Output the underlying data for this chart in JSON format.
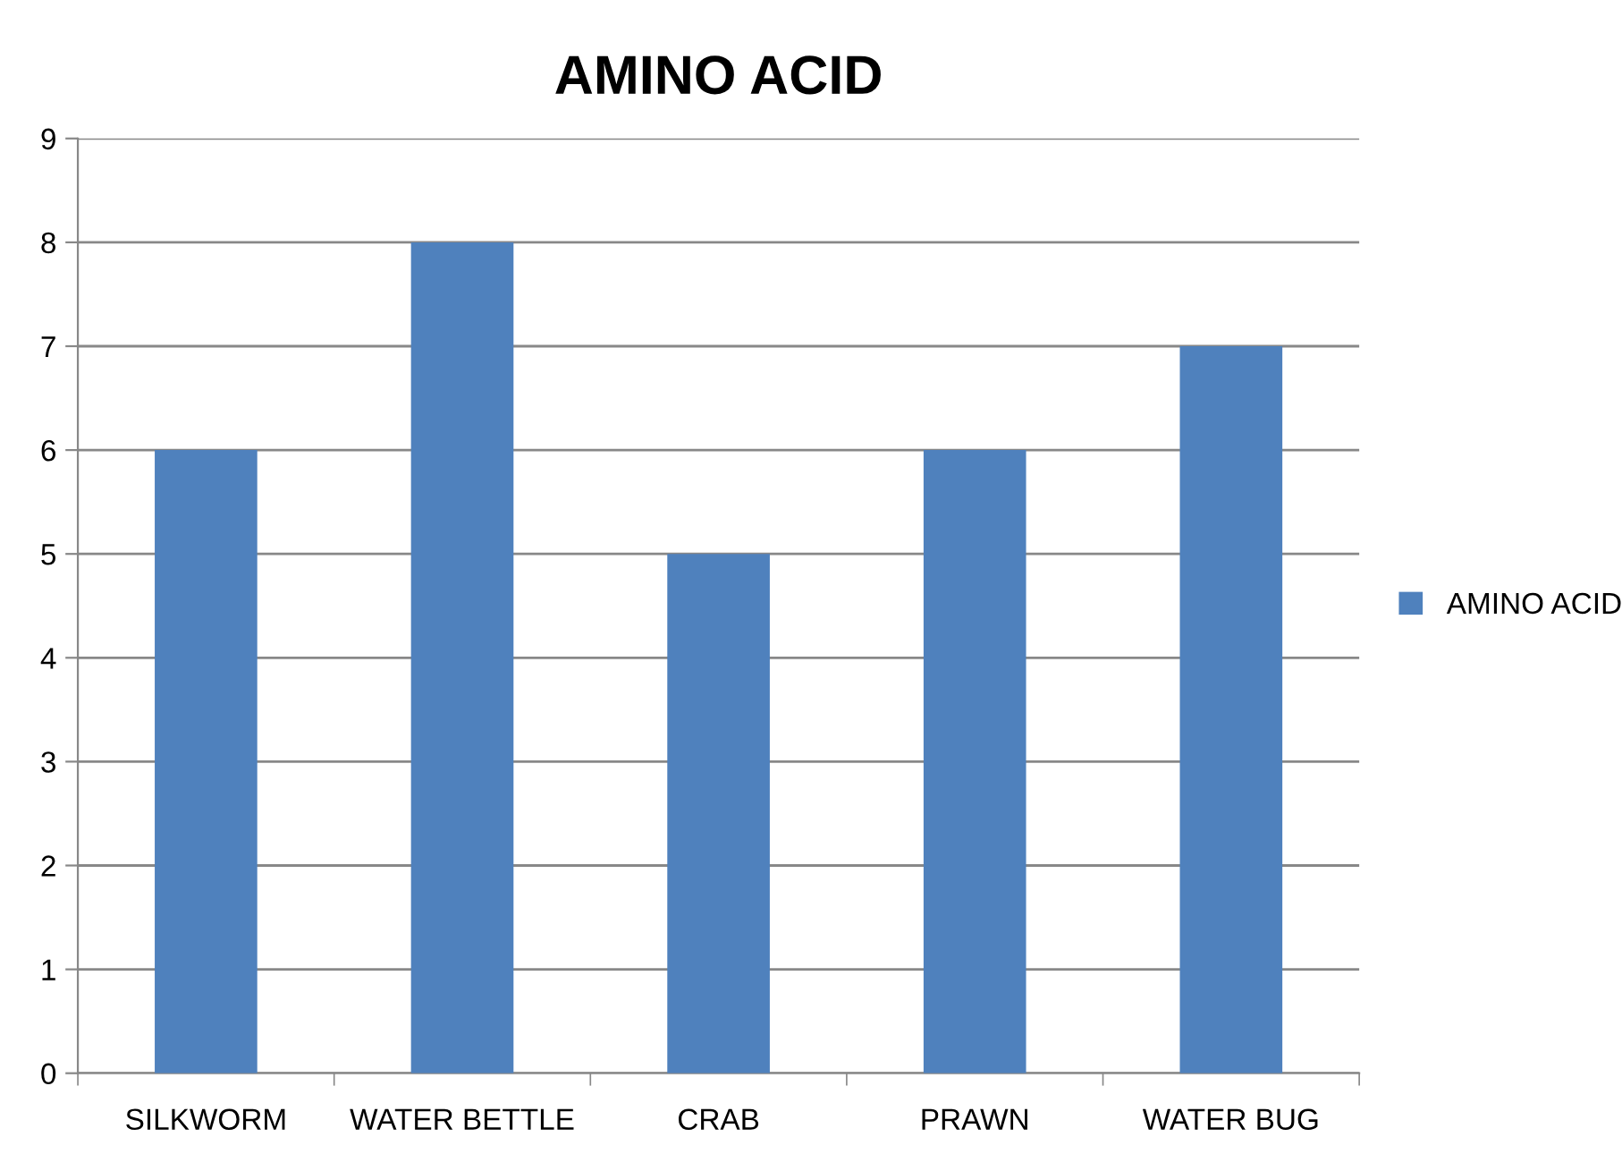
{
  "chart_data": {
    "type": "bar",
    "title": "AMINO ACID",
    "categories": [
      "SILKWORM",
      "WATER BETTLE",
      "CRAB",
      "PRAWN",
      "WATER BUG"
    ],
    "series": [
      {
        "name": "AMINO ACID",
        "color": "#4f81bd",
        "values": [
          6,
          8,
          5,
          6,
          7
        ]
      }
    ],
    "ylim": [
      0,
      9
    ],
    "yticks": [
      0,
      1,
      2,
      3,
      4,
      5,
      6,
      7,
      8,
      9
    ],
    "grid": "y",
    "legend": "right"
  }
}
